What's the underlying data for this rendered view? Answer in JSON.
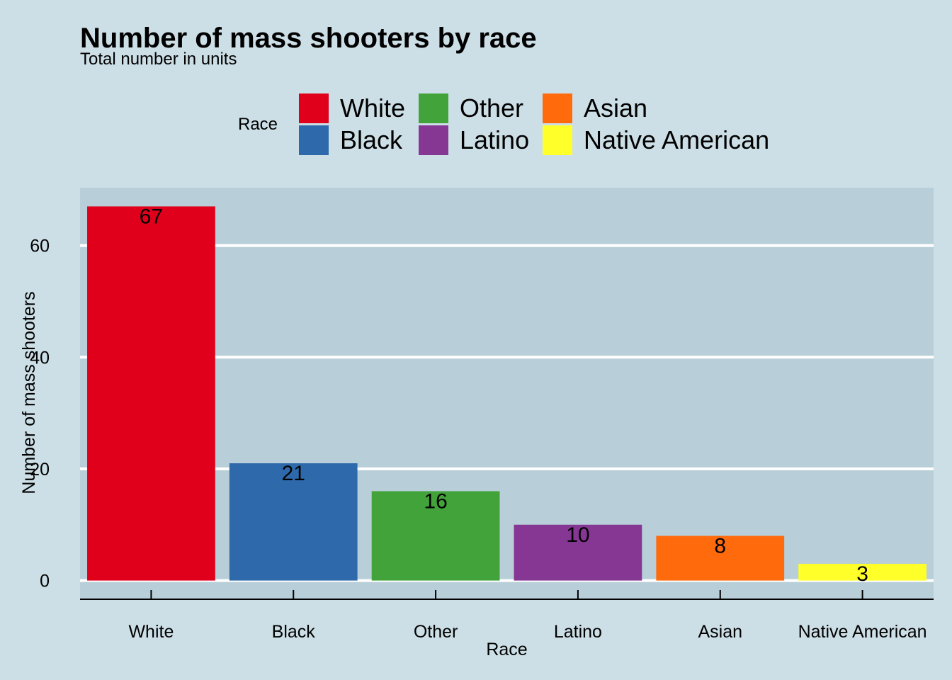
{
  "chart_data": {
    "type": "bar",
    "title": "Number of mass shooters by race",
    "subtitle": "Total number in units",
    "xlabel": "Race",
    "ylabel": "Number of mass shooters",
    "categories": [
      "White",
      "Black",
      "Other",
      "Latino",
      "Asian",
      "Native American"
    ],
    "values": [
      67,
      21,
      16,
      10,
      8,
      3
    ],
    "colors": [
      "#e0001b",
      "#2e6aab",
      "#42a33a",
      "#863793",
      "#ff6a0d",
      "#ffff29"
    ],
    "ylim": [
      -3.35,
      70.35
    ],
    "yticks": [
      0,
      20,
      40,
      60
    ],
    "grid": true,
    "legend": {
      "title": "Race",
      "placement": "top",
      "entries": [
        {
          "label": "White",
          "color": "#e0001b"
        },
        {
          "label": "Black",
          "color": "#2e6aab"
        },
        {
          "label": "Other",
          "color": "#42a33a"
        },
        {
          "label": "Latino",
          "color": "#863793"
        },
        {
          "label": "Asian",
          "color": "#ff6a0d"
        },
        {
          "label": "Native American",
          "color": "#ffff29"
        }
      ]
    },
    "style": {
      "background": "#cddfe6",
      "panel_background": "#b8ced8",
      "grid_color": "#ffffff"
    }
  }
}
